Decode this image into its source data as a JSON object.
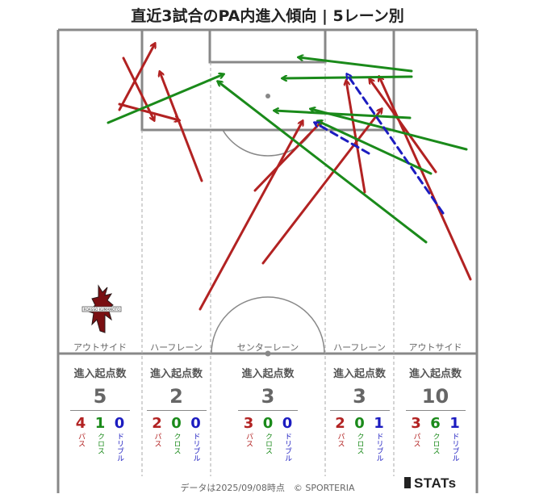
{
  "title": "直近3試合のPA内進入傾向 | 5レーン別",
  "colors": {
    "pass": "#b22222",
    "cross": "#1a8a1a",
    "dribble": "#1c1cc0",
    "line": "#888888"
  },
  "lanes": [
    {
      "label": "アウトサイド",
      "heading": "進入起点数",
      "total": "5",
      "breakdown": [
        {
          "count": "4",
          "label": "パス"
        },
        {
          "count": "1",
          "label": "クロス"
        },
        {
          "count": "0",
          "label": "ドリブル"
        }
      ]
    },
    {
      "label": "ハーフレーン",
      "heading": "進入起点数",
      "total": "2",
      "breakdown": [
        {
          "count": "2",
          "label": "パス"
        },
        {
          "count": "0",
          "label": "クロス"
        },
        {
          "count": "0",
          "label": "ドリブル"
        }
      ]
    },
    {
      "label": "センターレーン",
      "heading": "進入起点数",
      "total": "3",
      "breakdown": [
        {
          "count": "3",
          "label": "パス"
        },
        {
          "count": "0",
          "label": "クロス"
        },
        {
          "count": "0",
          "label": "ドリブル"
        }
      ]
    },
    {
      "label": "ハーフレーン",
      "heading": "進入起点数",
      "total": "3",
      "breakdown": [
        {
          "count": "2",
          "label": "パス"
        },
        {
          "count": "0",
          "label": "クロス"
        },
        {
          "count": "1",
          "label": "ドリブル"
        }
      ]
    },
    {
      "label": "アウトサイド",
      "heading": "進入起点数",
      "total": "10",
      "breakdown": [
        {
          "count": "3",
          "label": "パス"
        },
        {
          "count": "6",
          "label": "クロス"
        },
        {
          "count": "1",
          "label": "ドリブル"
        }
      ]
    }
  ],
  "footer": "データは2025/09/08時点　© SPORTERIA",
  "logo": {
    "text": "STATs"
  },
  "crest": {
    "text": "ROASSO KUMAMOTO"
  }
}
